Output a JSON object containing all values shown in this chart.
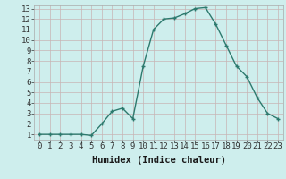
{
  "x": [
    0,
    1,
    2,
    3,
    4,
    5,
    6,
    7,
    8,
    9,
    10,
    11,
    12,
    13,
    14,
    15,
    16,
    17,
    18,
    19,
    20,
    21,
    22,
    23
  ],
  "y": [
    1.0,
    1.0,
    1.0,
    1.0,
    1.0,
    0.9,
    2.0,
    3.2,
    3.5,
    2.5,
    7.5,
    11.0,
    12.0,
    12.1,
    12.5,
    13.0,
    13.1,
    11.5,
    9.5,
    7.5,
    6.5,
    4.5,
    3.0,
    2.5
  ],
  "line_color": "#2d7a6e",
  "marker_color": "#2d7a6e",
  "bg_color": "#ceeeed",
  "grid_color": "#c8b4b4",
  "xlabel": "Humidex (Indice chaleur)",
  "xlim_min": -0.5,
  "xlim_max": 23.5,
  "ylim_min": 0.5,
  "ylim_max": 13.3,
  "yticks": [
    1,
    2,
    3,
    4,
    5,
    6,
    7,
    8,
    9,
    10,
    11,
    12,
    13
  ],
  "xticks": [
    0,
    1,
    2,
    3,
    4,
    5,
    6,
    7,
    8,
    9,
    10,
    11,
    12,
    13,
    14,
    15,
    16,
    17,
    18,
    19,
    20,
    21,
    22,
    23
  ],
  "xlabel_fontsize": 7.5,
  "tick_fontsize": 6.5,
  "linewidth": 1.0,
  "markersize": 2.5
}
